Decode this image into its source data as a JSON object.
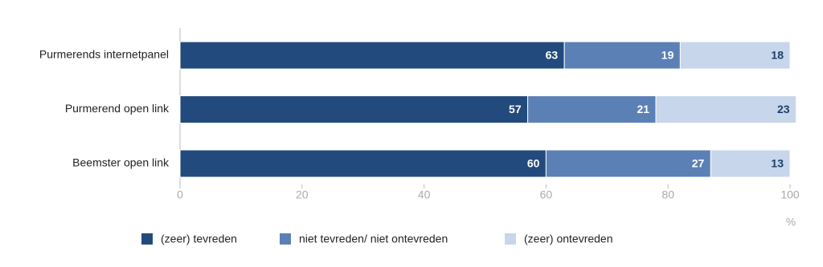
{
  "chart_data": {
    "type": "stacked-bar-horizontal",
    "categories": [
      "Purmerends internetpanel",
      "Purmerend open link",
      "Beemster open link"
    ],
    "series": [
      {
        "name": "(zeer) tevreden",
        "color": "#234a7c",
        "values": [
          63,
          57,
          60
        ]
      },
      {
        "name": "niet tevreden/ niet ontevreden",
        "color": "#5b80b6",
        "values": [
          19,
          21,
          27
        ]
      },
      {
        "name": "(zeer) ontevreden",
        "color": "#c7d6eb",
        "values": [
          18,
          23,
          13
        ]
      }
    ],
    "xlim": [
      0,
      100
    ],
    "xticks": [
      0,
      20,
      40,
      60,
      80,
      100
    ],
    "x_label": "%",
    "grid": false,
    "legend": "bottom"
  }
}
